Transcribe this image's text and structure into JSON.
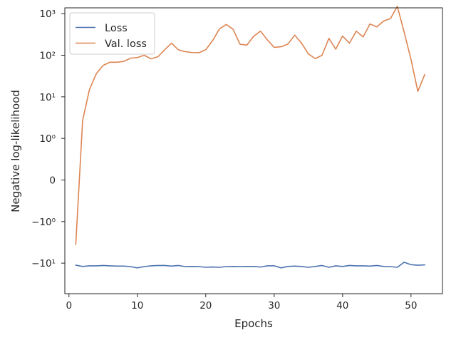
{
  "chart_data": {
    "type": "line",
    "xlabel": "Epochs",
    "ylabel": "Negative log-likelihood",
    "xlim": [
      -0.6,
      54.6
    ],
    "x_ticks": [
      0,
      10,
      20,
      30,
      40,
      50
    ],
    "y_scale": "symlog",
    "y_linthresh": 1,
    "y_ticks": [
      {
        "value": 1000,
        "label": "10³"
      },
      {
        "value": 100,
        "label": "10²"
      },
      {
        "value": 10,
        "label": "10¹"
      },
      {
        "value": 1,
        "label": "10⁰"
      },
      {
        "value": 0,
        "label": "0"
      },
      {
        "value": -1,
        "label": "−10⁰"
      },
      {
        "value": -10,
        "label": "−10¹"
      }
    ],
    "grid": false,
    "legend_position": "top-left",
    "x": [
      1,
      2,
      3,
      4,
      5,
      6,
      7,
      8,
      9,
      10,
      11,
      12,
      13,
      14,
      15,
      16,
      17,
      18,
      19,
      20,
      21,
      22,
      23,
      24,
      25,
      26,
      27,
      28,
      29,
      30,
      31,
      32,
      33,
      34,
      35,
      36,
      37,
      38,
      39,
      40,
      41,
      42,
      43,
      44,
      45,
      46,
      47,
      48,
      49,
      50,
      51,
      52
    ],
    "series": [
      {
        "name": "Loss",
        "color": "#4c72b0",
        "values": [
          -11.2,
          -12.0,
          -11.6,
          -11.6,
          -11.4,
          -11.6,
          -11.8,
          -11.8,
          -12.1,
          -13.0,
          -12.1,
          -11.6,
          -11.4,
          -11.4,
          -11.8,
          -11.4,
          -12.1,
          -12.0,
          -12.1,
          -12.6,
          -12.4,
          -12.6,
          -12.1,
          -12.0,
          -12.1,
          -12.0,
          -12.0,
          -12.4,
          -11.6,
          -11.6,
          -13.0,
          -12.0,
          -11.8,
          -12.0,
          -12.6,
          -12.0,
          -11.4,
          -12.6,
          -11.6,
          -12.0,
          -11.4,
          -11.6,
          -11.6,
          -11.8,
          -11.4,
          -12.0,
          -12.1,
          -12.6,
          -9.5,
          -10.9,
          -11.2,
          -11.0
        ]
      },
      {
        "name": "Val. loss",
        "color": "#dd8452",
        "values": [
          -3.5,
          2.7,
          15,
          36,
          57,
          68,
          68,
          71,
          85,
          88,
          100,
          82,
          92,
          136,
          195,
          135,
          122,
          116,
          115,
          136,
          225,
          430,
          550,
          420,
          185,
          175,
          285,
          380,
          235,
          155,
          160,
          185,
          305,
          195,
          108,
          83,
          100,
          255,
          140,
          290,
          195,
          380,
          275,
          565,
          480,
          665,
          765,
          1500,
          360,
          80,
          13.5,
          34
        ]
      }
    ]
  }
}
